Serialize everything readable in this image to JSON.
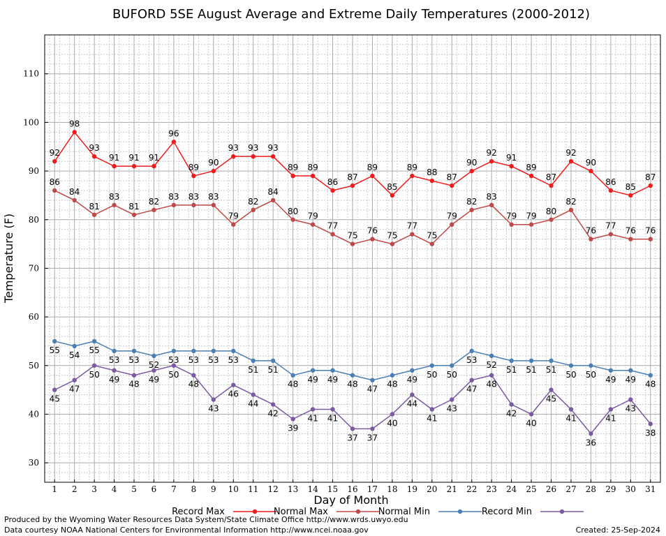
{
  "chart_data": {
    "type": "line",
    "title": "BUFORD 5SE August Average and Extreme Daily Temperatures (2000-2012)",
    "xlabel": "Day of Month",
    "ylabel": "Temperature (F)",
    "xlim": [
      0.5,
      31.5
    ],
    "ylim": [
      26,
      118
    ],
    "yticks": [
      30,
      40,
      50,
      60,
      70,
      80,
      90,
      100,
      110
    ],
    "grid": true,
    "legend": "bottom",
    "x": [
      1,
      2,
      3,
      4,
      5,
      6,
      7,
      8,
      9,
      10,
      11,
      12,
      13,
      14,
      15,
      16,
      17,
      18,
      19,
      20,
      21,
      22,
      23,
      24,
      25,
      26,
      27,
      28,
      29,
      30,
      31
    ],
    "series": [
      {
        "name": "Record Max",
        "color": "#ee1c1c",
        "values": [
          92,
          98,
          93,
          91,
          91,
          91,
          96,
          89,
          90,
          93,
          93,
          93,
          89,
          89,
          86,
          87,
          89,
          85,
          89,
          88,
          87,
          90,
          92,
          91,
          89,
          87,
          92,
          90,
          86,
          85,
          87
        ]
      },
      {
        "name": "Normal Max",
        "color": "#c04848",
        "values": [
          86,
          84,
          81,
          83,
          81,
          82,
          83,
          83,
          83,
          79,
          82,
          84,
          80,
          79,
          77,
          75,
          76,
          75,
          77,
          75,
          79,
          82,
          83,
          79,
          79,
          80,
          82,
          76,
          77,
          76,
          76
        ]
      },
      {
        "name": "Normal Min",
        "color": "#4a7fb5",
        "values": [
          55,
          54,
          55,
          53,
          53,
          52,
          53,
          53,
          53,
          53,
          51,
          51,
          48,
          49,
          49,
          48,
          47,
          48,
          49,
          50,
          50,
          53,
          52,
          51,
          51,
          51,
          50,
          50,
          49,
          49,
          48
        ]
      },
      {
        "name": "Record Min",
        "color": "#7a5aa0",
        "values": [
          45,
          47,
          50,
          49,
          48,
          49,
          50,
          48,
          43,
          46,
          44,
          42,
          39,
          41,
          41,
          37,
          37,
          40,
          44,
          41,
          43,
          47,
          48,
          42,
          40,
          45,
          41,
          36,
          41,
          43,
          38
        ]
      }
    ]
  },
  "footer": {
    "produced_by": "Produced by the Wyoming Water Resources Data System/State Climate Office http://www.wrds.uwyo.edu",
    "courtesy": "Data courtesy NOAA National Centers for Environmental Information http://www.ncei.noaa.gov",
    "created": "Created:  25-Sep-2024"
  }
}
